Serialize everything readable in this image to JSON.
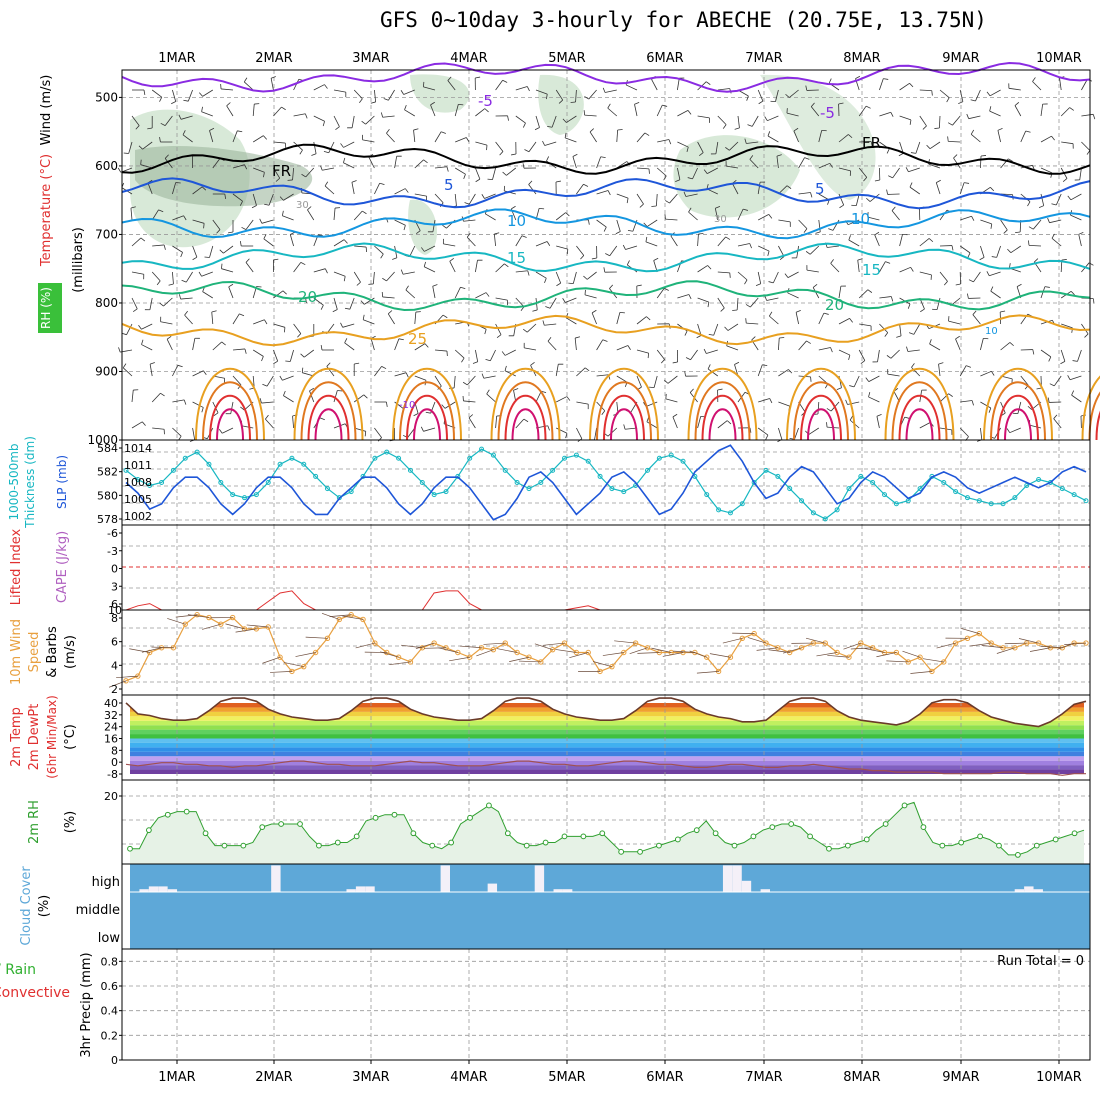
{
  "title": "GFS 0~10day 3-hourly for ABECHE (20.75E, 13.75N)",
  "colors": {
    "purple": "#8a2be2",
    "black": "#000000",
    "blue": "#1e56d8",
    "skyblue": "#1496e0",
    "cyan": "#17b7c2",
    "green": "#1fb37a",
    "orange": "#e8a020",
    "darkorange": "#e07820",
    "red": "#e03030",
    "magenta": "#d01070",
    "rh": "#c8e0c8",
    "cloud": "#5ea8d8",
    "wind": "#e8a040",
    "cape": "#b060c0",
    "li": "#e03030",
    "rhline": "#30a030"
  },
  "chart_data": [
    {
      "type": "line",
      "panel": "profile",
      "x": [
        "1MAR",
        "2MAR",
        "3MAR",
        "4MAR",
        "5MAR",
        "6MAR",
        "7MAR",
        "8MAR",
        "9MAR",
        "10MAR"
      ],
      "ylabel": "(millibars)",
      "side_labels": [
        "Wind (m/s)",
        "Temperature (°C)",
        "RH (%)"
      ],
      "yticks": [
        500,
        600,
        700,
        800,
        900,
        1000
      ],
      "ylim": [
        1000,
        460
      ],
      "contour_labels": [
        "-5",
        "-5",
        "FR",
        "FR",
        "5",
        "5",
        "10",
        "10",
        "15",
        "15",
        "20",
        "20",
        "25",
        "30",
        "30",
        "10",
        "-10"
      ],
      "isotherms": [
        {
          "name": "-5",
          "level_mb": 470
        },
        {
          "name": "FR",
          "level_mb": 590
        },
        {
          "name": "5",
          "level_mb": 640
        },
        {
          "name": "10",
          "level_mb": 685
        },
        {
          "name": "15",
          "level_mb": 735
        },
        {
          "name": "20",
          "level_mb": 790
        },
        {
          "name": "25",
          "level_mb": 840
        }
      ]
    },
    {
      "type": "line",
      "panel": "thickness_slp",
      "side_labels": [
        "1000-500mb",
        "Thickness (dm)",
        "SLP (mb)"
      ],
      "left_ticks": [
        "584",
        "582",
        "580",
        "578"
      ],
      "right_ticks": [
        "1014",
        "1011",
        "1008",
        "1005",
        "1002"
      ],
      "series": [
        {
          "name": "SLP (mb)",
          "values": [
            1010,
            1008.5,
            1007.5,
            1008,
            1010,
            1012,
            1013,
            1011,
            1008,
            1006,
            1005.5,
            1006,
            1008,
            1011,
            1012,
            1011,
            1009,
            1007,
            1005.5,
            1006.5,
            1009,
            1012,
            1013,
            1012,
            1010,
            1008,
            1006,
            1006.5,
            1009,
            1012,
            1013.5,
            1012.5,
            1010,
            1008,
            1007,
            1008,
            1010,
            1012,
            1012.5,
            1011.5,
            1009,
            1007,
            1006.5,
            1007.5,
            1010,
            1012,
            1012.5,
            1011.5,
            1009,
            1006,
            1003.5,
            1003,
            1004.5,
            1008,
            1010,
            1009,
            1007,
            1005,
            1003,
            1002,
            1003.5,
            1007,
            1009,
            1008,
            1006,
            1004.5,
            1005,
            1007,
            1009,
            1008,
            1006.5,
            1005.5,
            1005,
            1004.5,
            1004.5,
            1005.5,
            1007.5,
            1008.5,
            1008,
            1007,
            1006,
            1005
          ]
        },
        {
          "name": "1000-500mb Thickness (dm)",
          "values": [
            581,
            580,
            578.5,
            579,
            580.5,
            581.5,
            581.5,
            580.5,
            579,
            578,
            579,
            580.5,
            581.5,
            581.5,
            580.5,
            579,
            578,
            578,
            579.5,
            580.5,
            581.5,
            581.5,
            580.5,
            579,
            578,
            579,
            580.5,
            581.5,
            581.5,
            580.5,
            579,
            577.5,
            578,
            579.5,
            581.5,
            582,
            581,
            579.5,
            578,
            579,
            580,
            581.5,
            582,
            581,
            579.5,
            578,
            578.5,
            580,
            582,
            583,
            584,
            584.5,
            583,
            581,
            579.5,
            580,
            581.5,
            582.5,
            582,
            580.5,
            579,
            579.5,
            581,
            582,
            581.5,
            580.5,
            579.5,
            580,
            581.5,
            582,
            581.5,
            580.5,
            580,
            580.5,
            581,
            581.5,
            581,
            580.5,
            581,
            582,
            582.5,
            582
          ]
        }
      ]
    },
    {
      "type": "line",
      "panel": "lifted_index_cape",
      "side_labels": [
        "Lifted Index",
        "CAPE (J/kg)"
      ],
      "left_ticks": [
        "-6",
        "-3",
        "0",
        "3",
        "6"
      ],
      "right_ticks": [
        "10"
      ],
      "series": [
        {
          "name": "CAPE (J/kg)",
          "values": [
            0,
            2,
            3,
            0,
            0,
            0,
            0,
            0,
            0,
            0,
            0,
            0,
            4,
            8,
            9,
            3,
            0,
            0,
            0,
            0,
            0,
            0,
            0,
            0,
            0,
            0,
            8,
            9,
            9,
            3,
            0,
            0,
            0,
            0,
            0,
            0,
            0,
            0,
            1,
            2,
            0,
            0,
            0,
            0,
            0,
            0,
            0,
            0,
            0,
            0,
            0,
            0,
            0,
            0,
            0,
            0,
            0,
            0,
            0,
            0,
            0,
            0,
            0,
            0,
            0,
            0,
            0,
            0,
            0,
            0,
            0,
            0,
            0,
            0,
            0,
            0,
            0,
            0,
            0,
            0,
            0,
            0
          ]
        }
      ]
    },
    {
      "type": "line",
      "panel": "wind10m",
      "side_labels": [
        "10m Wind",
        "Speed",
        "& Barbs",
        "(m/s)"
      ],
      "left_ticks": [
        "8",
        "6",
        "4",
        "2"
      ],
      "series": [
        {
          "name": "10m Wind Speed (m/s)",
          "values": [
            1.5,
            2,
            4.5,
            5,
            5,
            7.5,
            8.5,
            8.2,
            7.5,
            8.2,
            7,
            7,
            7.2,
            4,
            2.5,
            3,
            4.5,
            6,
            8,
            8.5,
            8,
            5.5,
            4.5,
            4,
            3.5,
            5,
            5.5,
            5,
            4.5,
            4,
            5,
            4.8,
            5.5,
            4.5,
            4,
            3.5,
            4.8,
            5.5,
            4.5,
            4.5,
            2.5,
            3,
            4.5,
            5.5,
            5,
            4.5,
            4.5,
            4.5,
            4.5,
            4,
            2.5,
            4,
            6,
            6.5,
            5.5,
            5,
            4.5,
            5,
            5.5,
            5.5,
            4.5,
            4,
            5.5,
            5,
            4.5,
            4.5,
            3.5,
            4,
            2.5,
            3.5,
            5.5,
            6,
            6.5,
            5.5,
            5,
            5,
            5.5,
            5.5,
            5,
            5,
            5.5,
            5.5
          ]
        }
      ]
    },
    {
      "type": "line",
      "panel": "temp2m",
      "side_labels": [
        "2m Temp",
        "2m DewPt",
        "(6hr Min/Max)",
        "(°C)"
      ],
      "left_ticks": [
        "40",
        "32",
        "24",
        "16",
        "8",
        "0",
        "-8"
      ],
      "series": [
        {
          "name": "2m Temp",
          "values": [
            37,
            30,
            29,
            27,
            26,
            26,
            27,
            32,
            38,
            40,
            40,
            38,
            33,
            30,
            28,
            27,
            26,
            26,
            27,
            32,
            38,
            40,
            40,
            38,
            33,
            30,
            28,
            27,
            26,
            26,
            27,
            32,
            38,
            40,
            40,
            38,
            33,
            30,
            28,
            27,
            26,
            26,
            27,
            32,
            38,
            40,
            40,
            38,
            33,
            30,
            28,
            27,
            25,
            25,
            26,
            32,
            38,
            40,
            40,
            38,
            32,
            28,
            26,
            25,
            24,
            23,
            25,
            30,
            37,
            39,
            39,
            37,
            32,
            28,
            26,
            24,
            23,
            22,
            25,
            30,
            36,
            38
          ]
        },
        {
          "name": "2m DewPt",
          "values": [
            -2,
            -3,
            -2,
            -1,
            -1,
            -2,
            -2,
            -3,
            -3,
            -4,
            -3,
            -3,
            -2,
            -1,
            0,
            0,
            -1,
            -2,
            -2,
            -3,
            -3,
            -3,
            -2,
            -1,
            0,
            -1,
            -1,
            -2,
            -3,
            -3,
            -3,
            -2,
            -1,
            0,
            0,
            -1,
            -2,
            -2,
            -3,
            -3,
            -2,
            -1,
            0,
            0,
            -1,
            -2,
            -2,
            -3,
            -4,
            -4,
            -3,
            -2,
            -2,
            -3,
            -4,
            -4,
            -3,
            -3,
            -2,
            -3,
            -4,
            -5,
            -5,
            -6,
            -6,
            -7,
            -7,
            -7,
            -7,
            -8,
            -8,
            -8,
            -8,
            -8,
            -7,
            -7,
            -8,
            -8,
            -8,
            -9,
            -8,
            -8
          ]
        }
      ]
    },
    {
      "type": "area",
      "panel": "rh2m",
      "side_labels": [
        "2m RH",
        "(%)"
      ],
      "left_ticks": [
        "20"
      ],
      "series": [
        {
          "name": "2m RH",
          "values": [
            3,
            3,
            9,
            13,
            14,
            15,
            15,
            15,
            8,
            4,
            4,
            4,
            4,
            5,
            10,
            11,
            11,
            11,
            11,
            7,
            4,
            4,
            5,
            5,
            7,
            12,
            13,
            14,
            14,
            14,
            8,
            5,
            4,
            3,
            5,
            11,
            13,
            15,
            17,
            15,
            8,
            5,
            4,
            4,
            5,
            5,
            7,
            7,
            7,
            7,
            8,
            5,
            2,
            2,
            2,
            3,
            4,
            5,
            6,
            8,
            9,
            12,
            8,
            5,
            4,
            5,
            7,
            9,
            10,
            11,
            11,
            10,
            7,
            5,
            3,
            3,
            4,
            5,
            6,
            9,
            11,
            14,
            17,
            18,
            10,
            5,
            4,
            4,
            5,
            6,
            7,
            6,
            4,
            1,
            1,
            2,
            4,
            5,
            6,
            7,
            8,
            9
          ]
        }
      ]
    },
    {
      "type": "bar",
      "panel": "cloud_cover",
      "side_labels": [
        "Cloud Cover",
        "(%)"
      ],
      "levels": [
        "high",
        "middle",
        "low"
      ],
      "series": [
        {
          "name": "high",
          "values": [
            0,
            10,
            20,
            20,
            10,
            0,
            0,
            0,
            0,
            0,
            0,
            0,
            0,
            0,
            0,
            95,
            0,
            0,
            0,
            0,
            0,
            0,
            0,
            10,
            20,
            20,
            0,
            0,
            0,
            0,
            0,
            0,
            0,
            95,
            0,
            0,
            0,
            0,
            30,
            0,
            0,
            0,
            0,
            95,
            0,
            10,
            10,
            0,
            0,
            0,
            0,
            0,
            0,
            0,
            0,
            0,
            0,
            0,
            0,
            0,
            0,
            0,
            0,
            95,
            95,
            40,
            0,
            10,
            0,
            0,
            0,
            0,
            0,
            0,
            0,
            0,
            0,
            0,
            0,
            0,
            0,
            0,
            0,
            0,
            0,
            0,
            0,
            0,
            0,
            0,
            0,
            0,
            0,
            0,
            10,
            20,
            10,
            0,
            0,
            0,
            0,
            0
          ]
        },
        {
          "name": "middle",
          "values": [
            0
          ]
        },
        {
          "name": "low",
          "values": [
            0
          ]
        }
      ]
    },
    {
      "type": "bar",
      "panel": "precip",
      "side_labels": [
        "Total / Rain",
        "Convective",
        "3hr Precip (mm)"
      ],
      "left_ticks": [
        "0.8",
        "0.6",
        "0.4",
        "0.2",
        "0"
      ],
      "ylim": [
        0,
        0.9
      ],
      "annotation": "Run Total = 0",
      "series": [
        {
          "name": "3hr Precip (mm)",
          "values": [
            0
          ]
        }
      ]
    }
  ]
}
